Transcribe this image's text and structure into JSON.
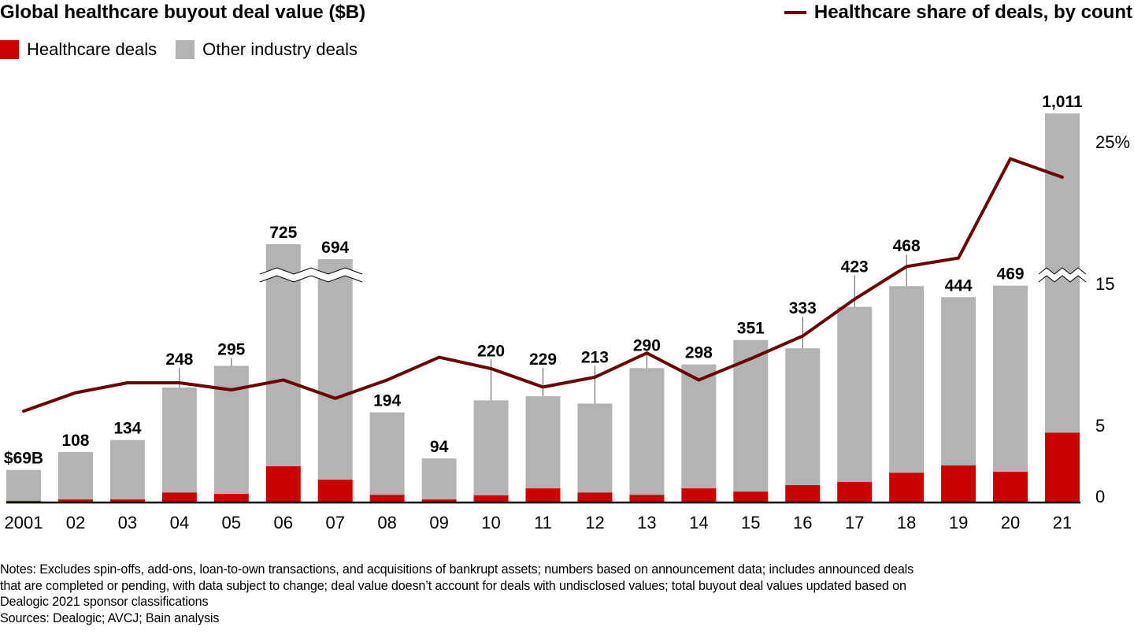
{
  "header": {
    "title": "Global healthcare buyout deal value ($B)",
    "line_legend": "Healthcare share of deals, by count"
  },
  "legend": [
    {
      "label": "Healthcare deals",
      "color": "#CC0000"
    },
    {
      "label": "Other industry deals",
      "color": "#B3B3B3"
    }
  ],
  "colors": {
    "healthcare": "#CC0000",
    "other": "#B3B3B3",
    "line": "#6B0000",
    "axis": "#000000"
  },
  "chart_data": {
    "type": "bar",
    "title": "Global healthcare buyout deal value ($B)",
    "xlabel": "",
    "ylabel": "",
    "categories": [
      "2001",
      "02",
      "03",
      "04",
      "05",
      "06",
      "07",
      "08",
      "09",
      "10",
      "11",
      "12",
      "13",
      "14",
      "15",
      "16",
      "17",
      "18",
      "19",
      "20",
      "21"
    ],
    "totals_labels": [
      "$69B",
      "108",
      "134",
      "248",
      "295",
      "725",
      "694",
      "194",
      "94",
      "220",
      "229",
      "213",
      "290",
      "298",
      "351",
      "333",
      "423",
      "468",
      "444",
      "469",
      "1,011"
    ],
    "totals": [
      69,
      108,
      134,
      248,
      295,
      725,
      694,
      194,
      94,
      220,
      229,
      213,
      290,
      298,
      351,
      333,
      423,
      468,
      444,
      469,
      1011
    ],
    "axis_break": {
      "applies_to": [
        "06",
        "07",
        "21"
      ]
    },
    "series": [
      {
        "name": "Healthcare deals",
        "type": "bar",
        "stack": "deal_value",
        "values": [
          2,
          5,
          5,
          20,
          17,
          77,
          48,
          15,
          5,
          14,
          29,
          20,
          15,
          29,
          22,
          36,
          43,
          63,
          79,
          65,
          150
        ]
      },
      {
        "name": "Other industry deals",
        "type": "bar",
        "stack": "deal_value",
        "values": [
          67,
          103,
          129,
          228,
          278,
          648,
          646,
          179,
          89,
          206,
          200,
          193,
          275,
          269,
          329,
          297,
          380,
          405,
          365,
          404,
          861
        ]
      },
      {
        "name": "Healthcare share of deals, by count",
        "type": "line",
        "axis": "right",
        "values": [
          6.0,
          7.3,
          8.0,
          8.0,
          7.5,
          8.2,
          6.9,
          8.2,
          9.8,
          9.0,
          7.7,
          8.4,
          10.1,
          8.2,
          9.7,
          11.3,
          13.9,
          16.2,
          16.8,
          23.8,
          22.5
        ]
      }
    ],
    "right_axis": {
      "ticks": [
        "0",
        "5",
        "15",
        "25%"
      ],
      "tick_values": [
        0,
        5,
        15,
        25
      ],
      "range": [
        0,
        27
      ],
      "break_between": [
        5,
        15
      ]
    },
    "grid": false,
    "legend_placement": "top-left (bars), top-right (line)"
  },
  "notes": {
    "lines": [
      "Notes: Excludes spin-offs, add-ons, loan-to-own transactions, and acquisitions of bankrupt assets; numbers based on announcement data; includes announced deals",
      "that are completed or pending, with data subject to change; deal value doesn’t account for deals with undisclosed values; total buyout deal values updated based on",
      "Dealogic 2021 sponsor classifications",
      "Sources: Dealogic; AVCJ; Bain analysis"
    ]
  }
}
